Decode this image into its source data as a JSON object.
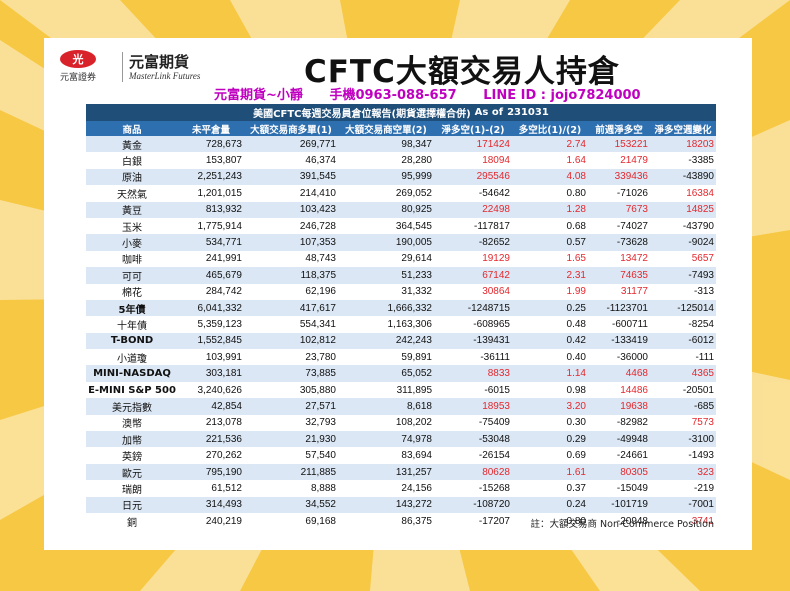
{
  "branding": {
    "logo_mark": "光",
    "logo_sub": "元富證券",
    "company_cn": "元富期貨",
    "company_en": "MasterLink Futures"
  },
  "title": "CFTC大額交易人持倉",
  "contact": {
    "name": "元富期貨~小靜",
    "phone": "手機0963-088-657",
    "line": "LINE ID : jojo7824000"
  },
  "table": {
    "caption_prefix": "美國CFTC每週交易員倉位報告(期貨選擇權合併)",
    "caption_asof": "As of",
    "caption_date": "231031",
    "columns": [
      "商品",
      "未平倉量",
      "大額交易商多單(1)",
      "大額交易商空單(2)",
      "淨多空(1)-(2)",
      "多空比(1)/(2)",
      "前週淨多空",
      "淨多空週變化"
    ],
    "rows": [
      {
        "name": "黃金",
        "oi": "728,673",
        "long": "269,771",
        "short": "98,347",
        "net": "171424",
        "ratio": "2.74",
        "prev": "153221",
        "chg": "18203"
      },
      {
        "name": "白銀",
        "oi": "153,807",
        "long": "46,374",
        "short": "28,280",
        "net": "18094",
        "ratio": "1.64",
        "prev": "21479",
        "chg": "-3385"
      },
      {
        "name": "原油",
        "oi": "2,251,243",
        "long": "391,545",
        "short": "95,999",
        "net": "295546",
        "ratio": "4.08",
        "prev": "339436",
        "chg": "-43890"
      },
      {
        "name": "天然氣",
        "oi": "1,201,015",
        "long": "214,410",
        "short": "269,052",
        "net": "-54642",
        "ratio": "0.80",
        "prev": "-71026",
        "chg": "16384"
      },
      {
        "name": "黃豆",
        "oi": "813,932",
        "long": "103,423",
        "short": "80,925",
        "net": "22498",
        "ratio": "1.28",
        "prev": "7673",
        "chg": "14825"
      },
      {
        "name": "玉米",
        "oi": "1,775,914",
        "long": "246,728",
        "short": "364,545",
        "net": "-117817",
        "ratio": "0.68",
        "prev": "-74027",
        "chg": "-43790"
      },
      {
        "name": "小麥",
        "oi": "534,771",
        "long": "107,353",
        "short": "190,005",
        "net": "-82652",
        "ratio": "0.57",
        "prev": "-73628",
        "chg": "-9024"
      },
      {
        "name": "咖啡",
        "oi": "241,991",
        "long": "48,743",
        "short": "29,614",
        "net": "19129",
        "ratio": "1.65",
        "prev": "13472",
        "chg": "5657"
      },
      {
        "name": "可可",
        "oi": "465,679",
        "long": "118,375",
        "short": "51,233",
        "net": "67142",
        "ratio": "2.31",
        "prev": "74635",
        "chg": "-7493"
      },
      {
        "name": "棉花",
        "oi": "284,742",
        "long": "62,196",
        "short": "31,332",
        "net": "30864",
        "ratio": "1.99",
        "prev": "31177",
        "chg": "-313"
      },
      {
        "name": "5年債",
        "oi": "6,041,332",
        "long": "417,617",
        "short": "1,666,332",
        "net": "-1248715",
        "ratio": "0.25",
        "prev": "-1123701",
        "chg": "-125014"
      },
      {
        "name": "十年債",
        "oi": "5,359,123",
        "long": "554,341",
        "short": "1,163,306",
        "net": "-608965",
        "ratio": "0.48",
        "prev": "-600711",
        "chg": "-8254"
      },
      {
        "name": "T-BOND",
        "oi": "1,552,845",
        "long": "102,812",
        "short": "242,243",
        "net": "-139431",
        "ratio": "0.42",
        "prev": "-133419",
        "chg": "-6012"
      },
      {
        "name": "小道瓊",
        "oi": "103,991",
        "long": "23,780",
        "short": "59,891",
        "net": "-36111",
        "ratio": "0.40",
        "prev": "-36000",
        "chg": "-111"
      },
      {
        "name": "MINI-NASDAQ",
        "oi": "303,181",
        "long": "73,885",
        "short": "65,052",
        "net": "8833",
        "ratio": "1.14",
        "prev": "4468",
        "chg": "4365"
      },
      {
        "name": "E-MINI S&P 500",
        "oi": "3,240,626",
        "long": "305,880",
        "short": "311,895",
        "net": "-6015",
        "ratio": "0.98",
        "prev": "14486",
        "chg": "-20501"
      },
      {
        "name": "美元指數",
        "oi": "42,854",
        "long": "27,571",
        "short": "8,618",
        "net": "18953",
        "ratio": "3.20",
        "prev": "19638",
        "chg": "-685"
      },
      {
        "name": "澳幣",
        "oi": "213,078",
        "long": "32,793",
        "short": "108,202",
        "net": "-75409",
        "ratio": "0.30",
        "prev": "-82982",
        "chg": "7573"
      },
      {
        "name": "加幣",
        "oi": "221,536",
        "long": "21,930",
        "short": "74,978",
        "net": "-53048",
        "ratio": "0.29",
        "prev": "-49948",
        "chg": "-3100"
      },
      {
        "name": "英鎊",
        "oi": "270,262",
        "long": "57,540",
        "short": "83,694",
        "net": "-26154",
        "ratio": "0.69",
        "prev": "-24661",
        "chg": "-1493"
      },
      {
        "name": "歐元",
        "oi": "795,190",
        "long": "211,885",
        "short": "131,257",
        "net": "80628",
        "ratio": "1.61",
        "prev": "80305",
        "chg": "323"
      },
      {
        "name": "瑞朗",
        "oi": "61,512",
        "long": "8,888",
        "short": "24,156",
        "net": "-15268",
        "ratio": "0.37",
        "prev": "-15049",
        "chg": "-219"
      },
      {
        "name": "日元",
        "oi": "314,493",
        "long": "34,552",
        "short": "143,272",
        "net": "-108720",
        "ratio": "0.24",
        "prev": "-101719",
        "chg": "-7001"
      },
      {
        "name": "銅",
        "oi": "240,219",
        "long": "69,168",
        "short": "86,375",
        "net": "-17207",
        "ratio": "0.80",
        "prev": "-20948",
        "chg": "3741"
      }
    ]
  },
  "note": "註：大額交易商 Non-Commerce Position",
  "colors": {
    "positive": "#e4282e",
    "header": "#1f4e79",
    "stripe": "#dbe7f4",
    "background": "#f7c844",
    "contact": "#c000c0"
  }
}
